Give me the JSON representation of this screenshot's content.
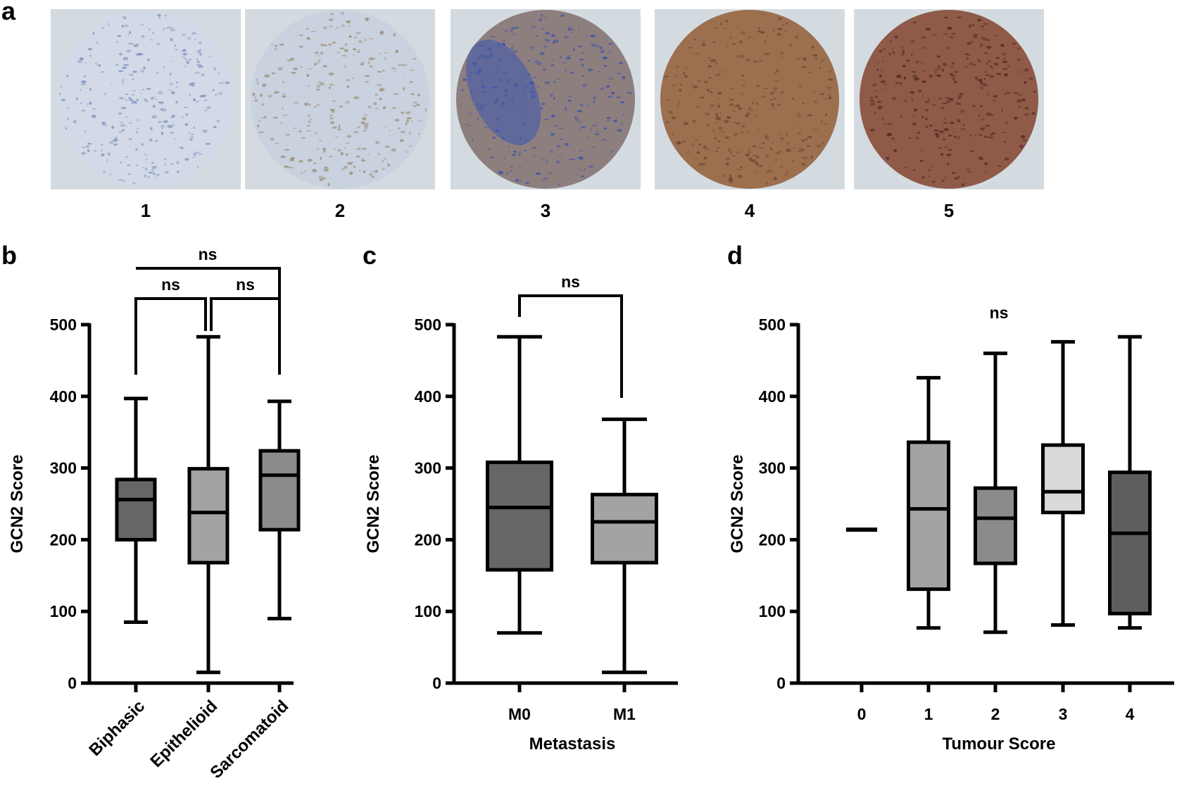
{
  "panel_letters": {
    "a": "a",
    "b": "b",
    "c": "c",
    "d": "d"
  },
  "images": {
    "labels": [
      "1",
      "2",
      "3",
      "4",
      "5"
    ],
    "colors": [
      {
        "bg": "#d3dbe0",
        "fill": "#d3d9e6",
        "speck": "#7f93c2"
      },
      {
        "bg": "#d3dbe0",
        "fill": "#c9d2de",
        "speck": "#9c8a72"
      },
      {
        "bg": "#d3dbe0",
        "fill": "#8e7f7f",
        "speck": "#3f55a6"
      },
      {
        "bg": "#d3dbe0",
        "fill": "#9c6f4f",
        "speck": "#6d4630"
      },
      {
        "bg": "#d3dbe0",
        "fill": "#8f5a48",
        "speck": "#4e2a22"
      }
    ]
  },
  "chart_data": [
    {
      "type": "box",
      "ylabel": "GCN2 Score",
      "xlabel": "",
      "ylim": [
        0,
        500
      ],
      "yticks": [
        "0",
        "100",
        "200",
        "300",
        "400",
        "500"
      ],
      "categories": [
        "Biphasic",
        "Epithelioid",
        "Sarcomatoid"
      ],
      "boxes": [
        {
          "min": 85,
          "q1": 200,
          "median": 256,
          "q3": 284,
          "max": 397,
          "color": "#666666"
        },
        {
          "min": 15,
          "q1": 168,
          "median": 238,
          "q3": 299,
          "max": 483,
          "color": "#a3a3a3"
        },
        {
          "min": 90,
          "q1": 214,
          "median": 290,
          "q3": 324,
          "max": 393,
          "color": "#8b8b8b"
        }
      ],
      "significance": [
        {
          "from": 0,
          "to": 2,
          "label": "ns",
          "level": 2
        },
        {
          "from": 0,
          "to": 1,
          "label": "ns",
          "level": 1
        },
        {
          "from": 1,
          "to": 2,
          "label": "ns",
          "level": 1
        }
      ]
    },
    {
      "type": "box",
      "ylabel": "GCN2 Score",
      "xlabel": "Metastasis",
      "ylim": [
        0,
        500
      ],
      "yticks": [
        "0",
        "100",
        "200",
        "300",
        "400",
        "500"
      ],
      "categories": [
        "M0",
        "M1"
      ],
      "boxes": [
        {
          "min": 70,
          "q1": 158,
          "median": 245,
          "q3": 308,
          "max": 483,
          "color": "#666666"
        },
        {
          "min": 15,
          "q1": 168,
          "median": 225,
          "q3": 263,
          "max": 368,
          "color": "#a3a3a3"
        }
      ],
      "significance": [
        {
          "from": 0,
          "to": 1,
          "label": "ns",
          "level": 1
        }
      ]
    },
    {
      "type": "box",
      "ylabel": "GCN2 Score",
      "xlabel": "Tumour Score",
      "ylim": [
        0,
        500
      ],
      "yticks": [
        "0",
        "100",
        "200",
        "300",
        "400",
        "500"
      ],
      "categories": [
        "0",
        "1",
        "2",
        "3",
        "4"
      ],
      "boxes": [
        {
          "min": 214,
          "q1": 214,
          "median": 214,
          "q3": 214,
          "max": 214,
          "color": "#666666"
        },
        {
          "min": 77,
          "q1": 131,
          "median": 243,
          "q3": 336,
          "max": 426,
          "color": "#a3a3a3"
        },
        {
          "min": 71,
          "q1": 167,
          "median": 230,
          "q3": 272,
          "max": 460,
          "color": "#8b8b8b"
        },
        {
          "min": 81,
          "q1": 238,
          "median": 267,
          "q3": 332,
          "max": 476,
          "color": "#d9d9d9"
        },
        {
          "min": 77,
          "q1": 97,
          "median": 209,
          "q3": 294,
          "max": 483,
          "color": "#5e5e5e"
        }
      ],
      "overall_label": "ns"
    }
  ]
}
